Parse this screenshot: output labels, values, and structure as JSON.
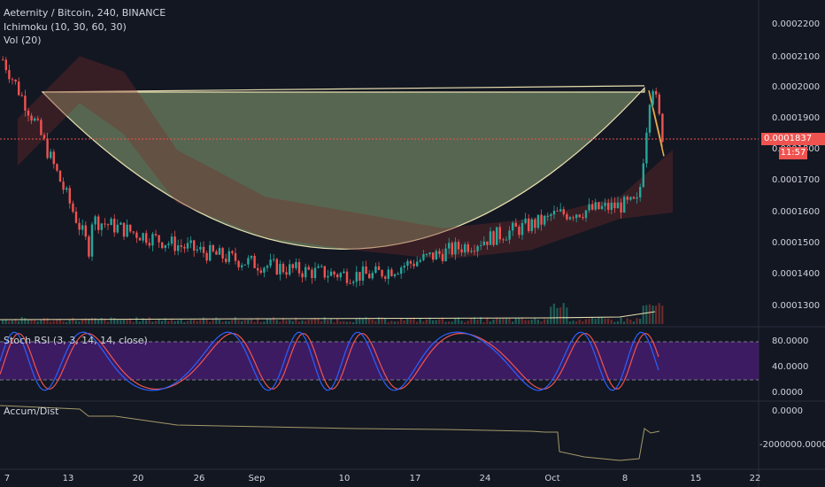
{
  "main_legend": {
    "symbol": "Aeternity / Bitcoin, 240, BINANCE",
    "ichimoku": "Ichimoku (10, 30, 60, 30)",
    "volume": "Vol (20)"
  },
  "stoch_legend": "Stoch RSI (3, 3, 14, 14, close)",
  "accum_legend": "Accum/Dist",
  "price_axis": [
    "0.0002200",
    "0.0002100",
    "0.0002000",
    "0.0001900",
    "0.0001800",
    "0.0001700",
    "0.0001600",
    "0.0001500",
    "0.0001400",
    "0.0001300"
  ],
  "stoch_axis": [
    "80.0000",
    "40.0000",
    "0.0000"
  ],
  "accum_axis": [
    "0.0000",
    "-2000000.0000"
  ],
  "current_price": "0.0001837",
  "countdown": "11:57",
  "x_axis": [
    "7",
    "13",
    "20",
    "26",
    "Sep",
    "10",
    "17",
    "24",
    "Oct",
    "8",
    "15",
    "22"
  ],
  "colors": {
    "background": "#131722",
    "up_candle": "#26a69a",
    "down_candle": "#ef5350",
    "cup_fill": "#8fa876",
    "price_line": "#ef5350",
    "stoch_band": "#4b1d7a",
    "k_line": "#2962ff",
    "d_line": "#ef5350",
    "accum_line": "#a39a6a"
  }
}
